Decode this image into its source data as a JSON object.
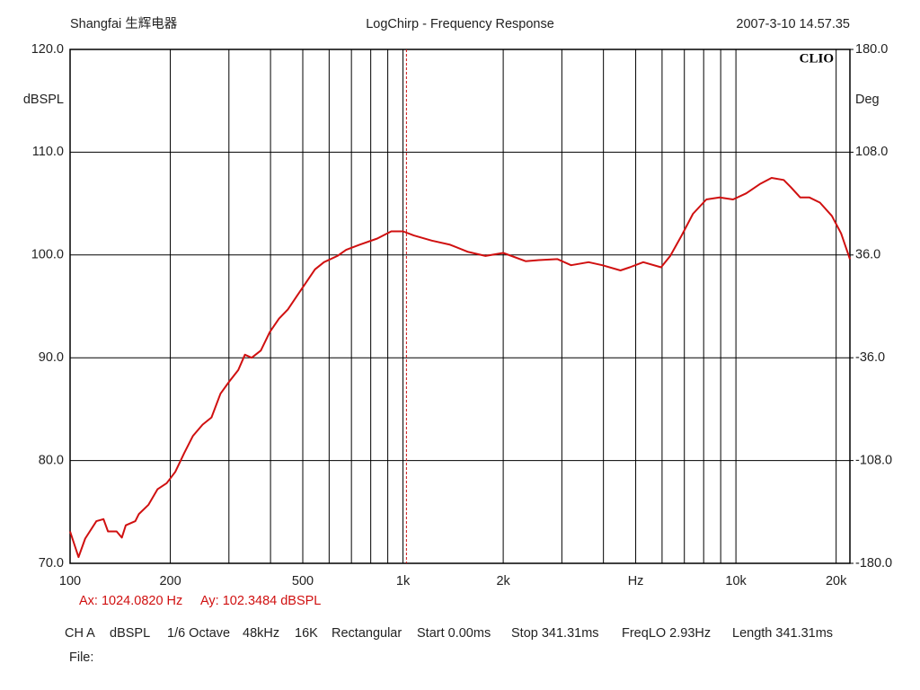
{
  "chart_data": {
    "type": "line",
    "header_left": "Shangfai 生辉电器",
    "title": "LogChirp - Frequency Response",
    "header_right": "2007-3-10 14.57.35",
    "brand": "CLIO",
    "ylabel": "dBSPL",
    "y2label": "Deg",
    "xscale": "log",
    "grid": true,
    "xlim": [
      100,
      22000
    ],
    "ylim": [
      70,
      120
    ],
    "y2lim": [
      -180,
      180
    ],
    "xticks": [
      100,
      200,
      500,
      {
        "value": 1000,
        "label": "1k"
      },
      {
        "value": 2000,
        "label": "2k"
      },
      {
        "value": 5000,
        "label": "Hz"
      },
      {
        "value": 10000,
        "label": "10k"
      },
      {
        "value": 20000,
        "label": "20k"
      }
    ],
    "xminor": [
      300,
      400,
      600,
      700,
      800,
      900,
      3000,
      4000,
      6000,
      7000,
      8000,
      9000
    ],
    "yticks": [
      {
        "value": 70,
        "label": "70.0"
      },
      {
        "value": 80,
        "label": "80.0"
      },
      {
        "value": 90,
        "label": "90.0"
      },
      {
        "value": 100,
        "label": "100.0"
      },
      {
        "value": 110,
        "label": "110.0"
      },
      {
        "value": 120,
        "label": "120.0"
      }
    ],
    "y2ticks": [
      {
        "value": -180,
        "label": "-180.0"
      },
      {
        "value": -108,
        "label": "-108.0"
      },
      {
        "value": -36,
        "label": "-36.0"
      },
      {
        "value": 36,
        "label": "36.0"
      },
      {
        "value": 108,
        "label": "108.0"
      },
      {
        "value": 180,
        "label": "180.0"
      }
    ],
    "x": [
      100,
      106,
      111,
      120,
      126,
      130,
      138,
      143,
      147,
      157,
      161,
      172,
      183,
      195,
      207,
      220,
      234,
      250,
      266,
      283,
      301,
      320,
      335,
      351,
      374,
      398,
      424,
      451,
      480,
      511,
      544,
      579,
      635,
      675,
      740,
      837,
      922,
      1000,
      1078,
      1220,
      1385,
      1570,
      1770,
      2000,
      2335,
      2560,
      2910,
      3200,
      3610,
      3970,
      4500,
      4800,
      5270,
      5960,
      6350,
      6870,
      7430,
      8150,
      8930,
      9800,
      10740,
      11800,
      12800,
      13920,
      14620,
      15590,
      16600,
      17880,
      19420,
      20700,
      22000
    ],
    "series": [
      {
        "name": "dBSPL",
        "color": "#d01010",
        "values": [
          73.1,
          70.6,
          72.4,
          74.1,
          74.3,
          73.1,
          73.1,
          72.5,
          73.7,
          74.1,
          74.8,
          75.7,
          77.2,
          77.8,
          78.9,
          80.7,
          82.4,
          83.5,
          84.2,
          86.5,
          87.7,
          88.8,
          90.3,
          90.0,
          90.7,
          92.5,
          93.8,
          94.7,
          96.0,
          97.3,
          98.6,
          99.3,
          99.9,
          100.5,
          101.0,
          101.6,
          102.3,
          102.3,
          101.9,
          101.4,
          101.0,
          100.3,
          99.9,
          100.2,
          99.4,
          99.5,
          99.6,
          99.0,
          99.3,
          99.0,
          98.5,
          98.8,
          99.3,
          98.8,
          99.9,
          101.9,
          104.0,
          105.4,
          105.6,
          105.4,
          106.0,
          106.9,
          107.5,
          107.3,
          106.6,
          105.6,
          105.6,
          105.1,
          103.8,
          102.1,
          99.6
        ]
      }
    ],
    "cursor": {
      "x": 1024.082,
      "x_label": "Ax: 1024.0820 Hz",
      "y_label": "Ay: 102.3484 dBSPL"
    },
    "footer": [
      "CH A",
      "dBSPL",
      "1/6 Octave",
      "48kHz",
      "16K",
      "Rectangular",
      "Start 0.00ms",
      "Stop 341.31ms",
      "FreqLO 2.93Hz",
      "Length 341.31ms"
    ],
    "file_label": "File:"
  }
}
